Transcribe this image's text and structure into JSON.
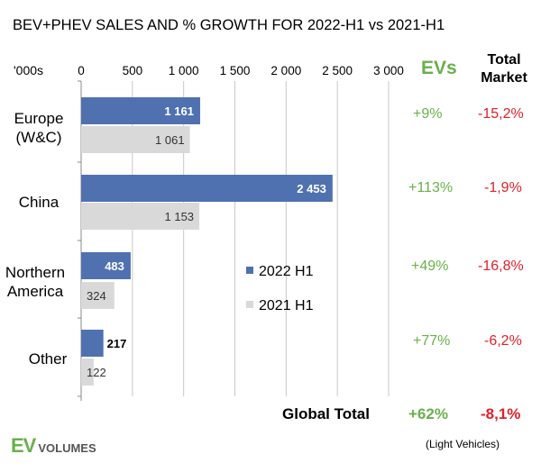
{
  "chart_data": {
    "type": "bar",
    "orientation": "horizontal",
    "title": "BEV+PHEV SALES AND % GROWTH FOR 2022-H1 vs 2021-H1",
    "units_label": "'000s",
    "xlim": [
      0,
      3000
    ],
    "ticks": [
      0,
      500,
      1000,
      1500,
      2000,
      2500,
      3000
    ],
    "tick_labels": [
      "0",
      "500",
      "1 000",
      "1 500",
      "2 000",
      "2 500",
      "3 000"
    ],
    "categories": [
      "Europe (W&C)",
      "China",
      "Northern America",
      "Other"
    ],
    "series": [
      {
        "name": "2022 H1",
        "color": "#4f71b0",
        "values": [
          1161,
          2453,
          483,
          217
        ],
        "labels": [
          "1 161",
          "2 453",
          "483",
          "217"
        ]
      },
      {
        "name": "2021 H1",
        "color": "#d9d9d9",
        "values": [
          1061,
          1153,
          324,
          122
        ],
        "labels": [
          "1 061",
          "1 153",
          "324",
          "122"
        ]
      }
    ],
    "ev_growth": [
      "+9%",
      "+113%",
      "+49%",
      "+77%"
    ],
    "total_market": [
      "-15,2%",
      "-1,9%",
      "-16,8%",
      "-6,2%"
    ],
    "global": {
      "label": "Global Total",
      "ev": "+62%",
      "total_market": "-8,1%"
    },
    "legend_position": "center"
  },
  "headers": {
    "evs": "EVs",
    "total_market_line1": "Total",
    "total_market_line2": "Market"
  },
  "regions": [
    {
      "line1": "Europe",
      "line2": "(W&C)"
    },
    {
      "line1": "China",
      "line2": ""
    },
    {
      "line1": "Northern",
      "line2": "America"
    },
    {
      "line1": "Other",
      "line2": ""
    }
  ],
  "footnote": "(Light Vehicles)",
  "logo": {
    "ev": "EV",
    "volumes": "VOLUMES"
  },
  "colors": {
    "ev_green": "#6ab04c",
    "market_red": "#e0202a",
    "bar_2022": "#4f71b0",
    "bar_2021": "#d9d9d9"
  }
}
